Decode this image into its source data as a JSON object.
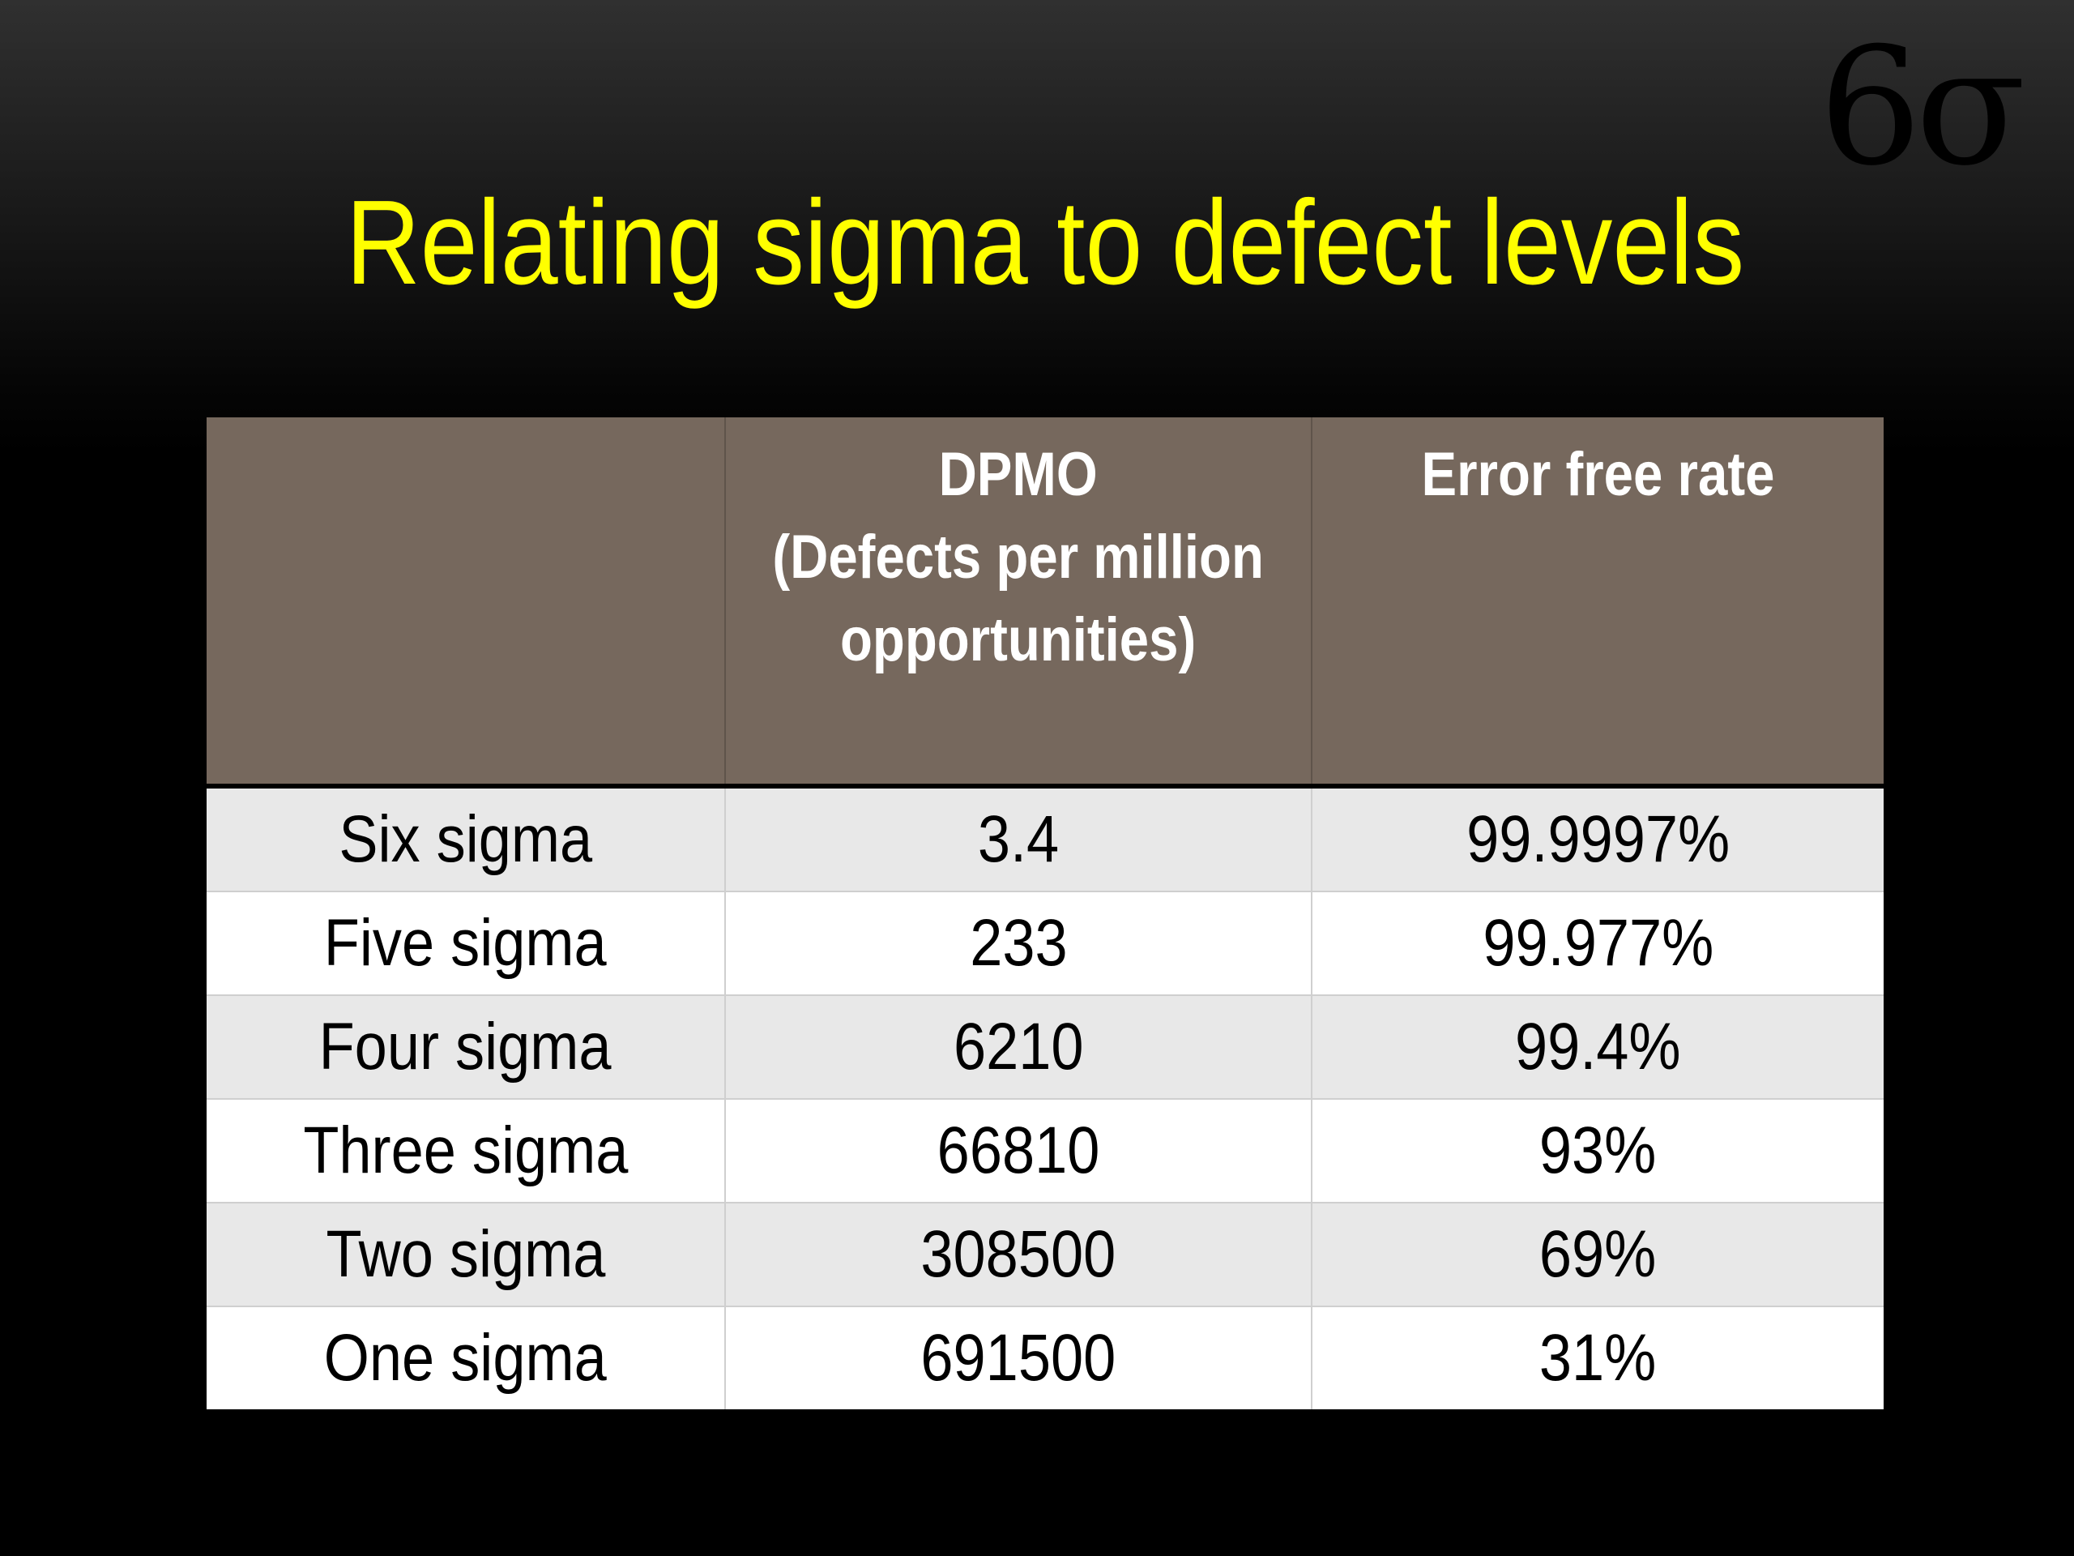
{
  "slide": {
    "logo": "6σ",
    "title": "Relating sigma to defect levels"
  },
  "table": {
    "headers": [
      "",
      "DPMO\n(Defects per million\nopportunities)",
      "Error free rate"
    ],
    "rows": [
      {
        "level": "Six sigma",
        "dpmo": "3.4",
        "error_free_rate": "99.9997%"
      },
      {
        "level": "Five sigma",
        "dpmo": "233",
        "error_free_rate": "99.977%"
      },
      {
        "level": "Four sigma",
        "dpmo": "6210",
        "error_free_rate": "99.4%"
      },
      {
        "level": "Three sigma",
        "dpmo": "66810",
        "error_free_rate": "93%"
      },
      {
        "level": "Two sigma",
        "dpmo": "308500",
        "error_free_rate": "69%"
      },
      {
        "level": "One sigma",
        "dpmo": "691500",
        "error_free_rate": "31%"
      }
    ]
  },
  "colors": {
    "title": "#ffff00",
    "header_background": "#76685d",
    "row_shaded": "#e8e8e8",
    "row_plain": "#ffffff"
  }
}
